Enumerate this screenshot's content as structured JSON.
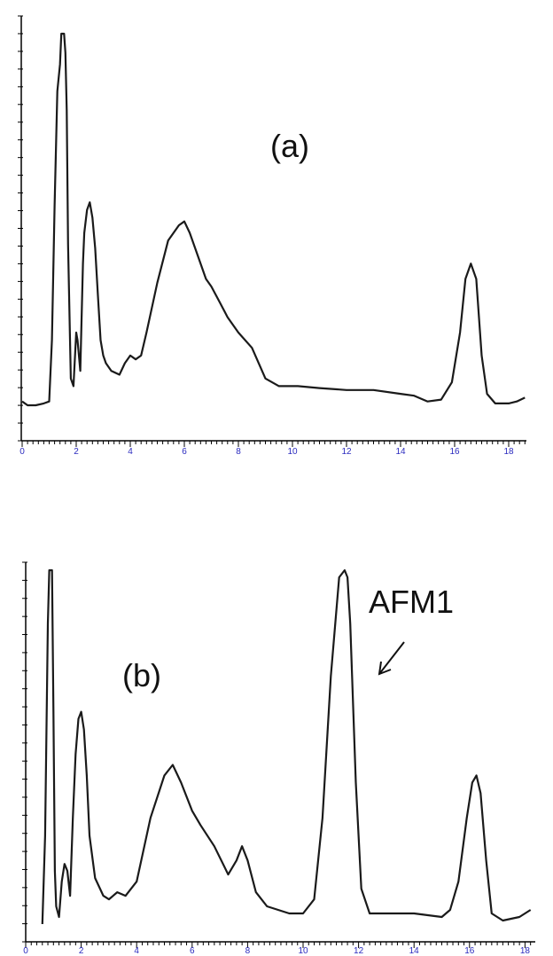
{
  "colors": {
    "trace": "#1a1a1a",
    "axis": "#000000",
    "tick_label": "#2b2bbf",
    "background": "#ffffff"
  },
  "chart_data": [
    {
      "type": "line",
      "panel_label": "(a)",
      "xlim": [
        0,
        18.7
      ],
      "ylim": [
        0,
        100
      ],
      "xticks": [
        "0",
        "2",
        "4",
        "6",
        "8",
        "10",
        "12",
        "14",
        "16",
        "18"
      ],
      "series": [
        {
          "x": [
            0,
            0.2,
            0.5,
            0.8,
            1.0,
            1.1,
            1.2,
            1.3,
            1.4,
            1.45,
            1.5,
            1.55,
            1.6,
            1.65,
            1.7,
            1.8,
            1.9,
            2.0,
            2.05,
            2.15,
            2.25,
            2.3,
            2.4,
            2.5,
            2.6,
            2.7,
            2.8,
            2.9,
            3.0,
            3.1,
            3.3,
            3.6,
            3.8,
            4.0,
            4.2,
            4.4,
            4.6,
            5.0,
            5.4,
            5.8,
            6.0,
            6.2,
            6.5,
            6.8,
            7.0,
            7.3,
            7.6,
            8.0,
            8.5,
            9.0,
            9.5,
            9.8,
            10.2,
            11.0,
            12.0,
            13.0,
            14.0,
            14.5,
            15.0,
            15.5,
            15.9,
            16.2,
            16.4,
            16.6,
            16.8,
            17.0,
            17.2,
            17.5,
            18.0,
            18.3,
            18.6
          ],
          "y": [
            4,
            3,
            3,
            3.5,
            4,
            20,
            55,
            85,
            92,
            100,
            100,
            100,
            95,
            80,
            45,
            10,
            8,
            22,
            20,
            12,
            40,
            48,
            54,
            56,
            52,
            44,
            32,
            20,
            16,
            14,
            12,
            11,
            14,
            16,
            15,
            16,
            22,
            35,
            46,
            50,
            51,
            48,
            42,
            36,
            34,
            30,
            26,
            22,
            18,
            10,
            8,
            8,
            8,
            7.5,
            7,
            7,
            6,
            5.5,
            4,
            4.5,
            9,
            22,
            36,
            40,
            36,
            16,
            6,
            3.5,
            3.5,
            4,
            5
          ]
        }
      ]
    },
    {
      "type": "line",
      "panel_label": "(b)",
      "annotation": "AFM1",
      "xlim": [
        0,
        18.3
      ],
      "ylim": [
        0,
        100
      ],
      "xticks": [
        "0",
        "2",
        "4",
        "6",
        "8",
        "10",
        "12",
        "14",
        "16",
        "18"
      ],
      "series": [
        {
          "x": [
            0.6,
            0.7,
            0.8,
            0.85,
            0.9,
            0.95,
            1.0,
            1.05,
            1.1,
            1.2,
            1.3,
            1.4,
            1.5,
            1.6,
            1.7,
            1.8,
            1.9,
            2.0,
            2.1,
            2.2,
            2.3,
            2.5,
            2.8,
            3.0,
            3.3,
            3.6,
            4.0,
            4.5,
            5.0,
            5.3,
            5.6,
            6.0,
            6.3,
            6.8,
            7.3,
            7.6,
            7.8,
            8.0,
            8.3,
            8.7,
            9.5,
            10.0,
            10.4,
            10.7,
            11.0,
            11.3,
            11.5,
            11.6,
            11.7,
            11.9,
            12.1,
            12.4,
            13.0,
            14.0,
            15.0,
            15.3,
            15.6,
            15.9,
            16.1,
            16.25,
            16.4,
            16.6,
            16.8,
            17.2,
            17.8,
            18.2
          ],
          "y": [
            0,
            25,
            85,
            100,
            100,
            100,
            60,
            15,
            5,
            2,
            12,
            17,
            15,
            8,
            30,
            48,
            58,
            60,
            55,
            42,
            25,
            13,
            8,
            7,
            9,
            8,
            12,
            30,
            42,
            45,
            40,
            32,
            28,
            22,
            14,
            18,
            22,
            18,
            9,
            5,
            3,
            3,
            7,
            30,
            70,
            98,
            100,
            98,
            85,
            40,
            10,
            3,
            3,
            3,
            2,
            4,
            12,
            30,
            40,
            42,
            37,
            18,
            3,
            1,
            2,
            4
          ]
        }
      ]
    }
  ]
}
